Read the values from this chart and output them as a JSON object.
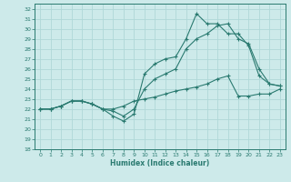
{
  "title": "",
  "xlabel": "Humidex (Indice chaleur)",
  "ylabel": "",
  "background_color": "#cdeaea",
  "grid_color": "#b0d8d8",
  "line_color": "#2a7a70",
  "xlim": [
    -0.5,
    23.5
  ],
  "ylim": [
    18,
    32.5
  ],
  "xticks": [
    0,
    1,
    2,
    3,
    4,
    5,
    6,
    7,
    8,
    9,
    10,
    11,
    12,
    13,
    14,
    15,
    16,
    17,
    18,
    19,
    20,
    21,
    22,
    23
  ],
  "yticks": [
    18,
    19,
    20,
    21,
    22,
    23,
    24,
    25,
    26,
    27,
    28,
    29,
    30,
    31,
    32
  ],
  "line1_x": [
    0,
    1,
    2,
    3,
    4,
    5,
    6,
    7,
    8,
    9,
    10,
    11,
    12,
    13,
    14,
    15,
    16,
    17,
    18,
    19,
    20,
    21,
    22,
    23
  ],
  "line1_y": [
    22,
    22,
    22.3,
    22.8,
    22.8,
    22.5,
    22.0,
    21.3,
    20.8,
    21.5,
    25.5,
    26.5,
    27.0,
    27.2,
    29.0,
    31.5,
    30.5,
    30.5,
    29.5,
    29.5,
    28.3,
    25.3,
    24.5,
    24.3
  ],
  "line2_x": [
    0,
    1,
    2,
    3,
    4,
    5,
    6,
    7,
    8,
    9,
    10,
    11,
    12,
    13,
    14,
    15,
    16,
    17,
    18,
    19,
    20,
    21,
    22,
    23
  ],
  "line2_y": [
    22,
    22,
    22.3,
    22.8,
    22.8,
    22.5,
    22.0,
    21.8,
    21.3,
    22.0,
    24.0,
    25.0,
    25.5,
    26.0,
    28.0,
    29.0,
    29.5,
    30.3,
    30.5,
    29.0,
    28.5,
    26.0,
    24.5,
    24.3
  ],
  "line3_x": [
    0,
    1,
    2,
    3,
    4,
    5,
    6,
    7,
    8,
    9,
    10,
    11,
    12,
    13,
    14,
    15,
    16,
    17,
    18,
    19,
    20,
    21,
    22,
    23
  ],
  "line3_y": [
    22,
    22,
    22.3,
    22.8,
    22.8,
    22.5,
    22.0,
    22.0,
    22.3,
    22.8,
    23.0,
    23.2,
    23.5,
    23.8,
    24.0,
    24.2,
    24.5,
    25.0,
    25.3,
    23.3,
    23.3,
    23.5,
    23.5,
    24.0
  ]
}
